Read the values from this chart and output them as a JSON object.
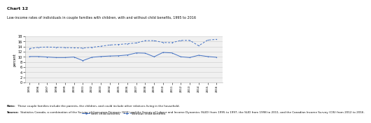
{
  "title_line1": "Chart 12",
  "title_line2": "Low-income rates of individuals in couple families with children, with and without child benefits, 1995 to 2016",
  "ylabel": "percent",
  "years": [
    1995,
    1996,
    1997,
    1998,
    1999,
    2000,
    2001,
    2002,
    2003,
    2004,
    2005,
    2006,
    2007,
    2008,
    2009,
    2010,
    2011,
    2012,
    2013,
    2014,
    2015,
    2016
  ],
  "with_child": [
    10.1,
    10.1,
    9.9,
    9.7,
    9.7,
    9.9,
    8.5,
    9.8,
    10.1,
    10.3,
    10.4,
    10.7,
    11.5,
    11.4,
    10.0,
    11.7,
    11.5,
    10.0,
    9.7,
    10.6,
    10.1,
    9.8
  ],
  "without_child": [
    13.2,
    13.7,
    13.8,
    13.7,
    13.6,
    13.5,
    13.4,
    13.7,
    14.1,
    14.6,
    14.8,
    15.1,
    15.4,
    16.3,
    16.3,
    15.6,
    15.5,
    16.4,
    16.4,
    14.3,
    16.5,
    16.8
  ],
  "line_color": "#4472C4",
  "ylim": [
    0,
    18
  ],
  "yticks": [
    0,
    2,
    4,
    6,
    8,
    10,
    12,
    14,
    16,
    18
  ],
  "legend_with": "With child benefits",
  "legend_without": "Without child benefits",
  "note_bold": "Note:",
  "note_text": " These couple families include the parents, the children, and could include other relatives living in the household.",
  "source_bold": "Source:",
  "source_text": " Statistics Canada, a combination of the Survey of Consumer Finances (SCF) and the Survey of Labour and Income Dynamics (SLID) from 1995 to 1997, the SLID from 1998 to 2011, and the Canadian Income Survey (CIS) from 2012 to 2016.",
  "bg_color": "#ffffff",
  "plot_bg": "#f0f0f0"
}
